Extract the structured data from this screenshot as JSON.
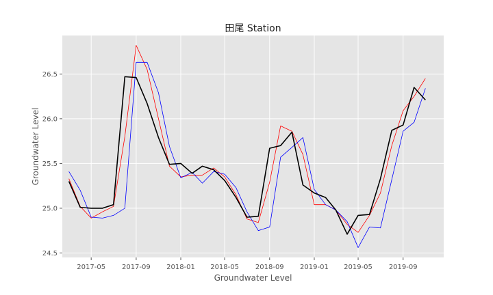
{
  "chart_data": {
    "type": "line",
    "title": "田尾 Station",
    "xlabel": "Groundwater Level",
    "ylabel": "Groundwater Level",
    "ylim": [
      24.45,
      26.93
    ],
    "xlim": [
      "2017-02-11",
      "2019-12-21"
    ],
    "grid": true,
    "x_ticks": [
      "2017-05",
      "2017-09",
      "2018-01",
      "2018-05",
      "2018-09",
      "2019-01",
      "2019-05",
      "2019-09"
    ],
    "y_ticks": [
      "24.5",
      "25.0",
      "25.5",
      "26.0",
      "26.5"
    ],
    "x": [
      "2017-03-01",
      "2017-04-01",
      "2017-05-01",
      "2017-06-01",
      "2017-07-01",
      "2017-08-01",
      "2017-09-01",
      "2017-10-01",
      "2017-11-01",
      "2017-12-01",
      "2018-01-01",
      "2018-02-01",
      "2018-03-01",
      "2018-04-01",
      "2018-05-01",
      "2018-06-01",
      "2018-07-01",
      "2018-08-01",
      "2018-09-01",
      "2018-10-01",
      "2018-11-01",
      "2018-12-01",
      "2019-01-01",
      "2019-02-01",
      "2019-03-01",
      "2019-04-01",
      "2019-05-01",
      "2019-06-01",
      "2019-07-01",
      "2019-08-01",
      "2019-09-01",
      "2019-10-01",
      "2019-11-01"
    ],
    "series": [
      {
        "color": "#000000",
        "values": [
          25.3,
          25.01,
          25.0,
          25.0,
          25.04,
          26.47,
          26.46,
          26.17,
          25.79,
          25.49,
          25.5,
          25.39,
          25.47,
          25.43,
          25.31,
          25.12,
          24.9,
          24.91,
          25.67,
          25.7,
          25.85,
          25.26,
          25.17,
          25.12,
          24.98,
          24.71,
          24.92,
          24.93,
          25.33,
          25.87,
          25.93,
          26.35,
          26.21
        ]
      },
      {
        "color": "#ff0000",
        "values": [
          25.33,
          25.02,
          24.89,
          24.96,
          25.02,
          25.8,
          26.82,
          26.55,
          26.0,
          25.47,
          25.35,
          25.37,
          25.37,
          25.45,
          25.35,
          25.15,
          24.88,
          24.84,
          25.29,
          25.92,
          25.86,
          25.6,
          25.04,
          25.04,
          24.98,
          24.82,
          24.73,
          24.92,
          25.17,
          25.7,
          26.09,
          26.25,
          26.45
        ]
      },
      {
        "color": "#0000ff",
        "values": [
          25.41,
          25.2,
          24.9,
          24.89,
          24.92,
          25.0,
          26.63,
          26.63,
          26.29,
          25.69,
          25.34,
          25.4,
          25.28,
          25.41,
          25.38,
          25.23,
          24.96,
          24.75,
          24.79,
          25.57,
          25.68,
          25.79,
          25.21,
          25.04,
          24.98,
          24.85,
          24.56,
          24.79,
          24.78,
          25.32,
          25.86,
          25.96,
          26.34
        ]
      }
    ]
  }
}
